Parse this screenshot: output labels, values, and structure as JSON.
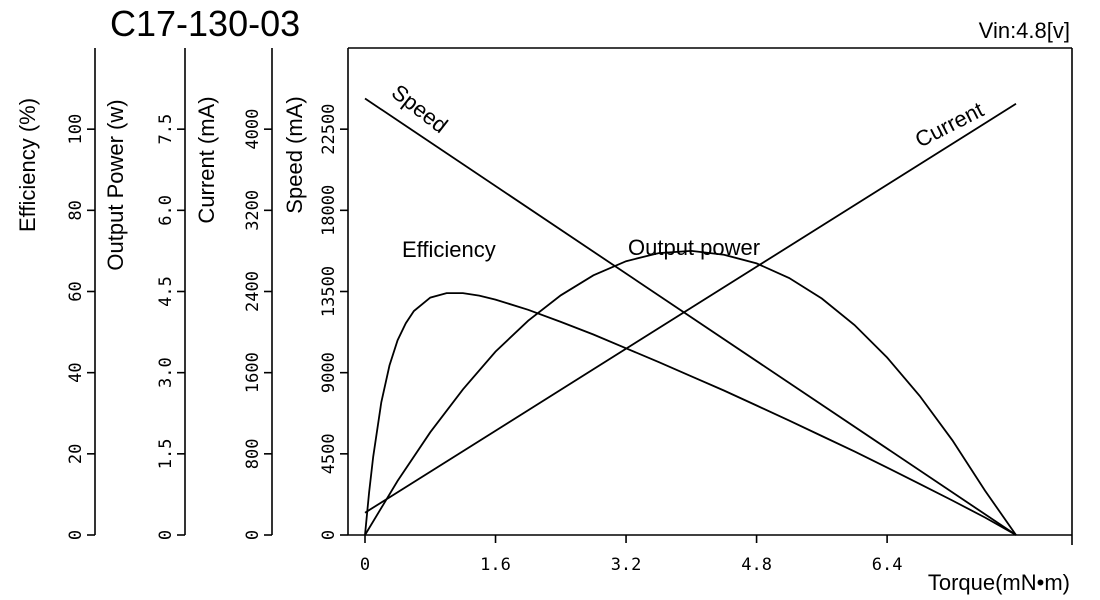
{
  "chart_data": {
    "type": "line",
    "title": "C17-130-03",
    "subtitle": "Vin:4.8[v]",
    "xlabel": "Torque(mN•m)",
    "xlim": [
      0,
      8.0
    ],
    "x_ticks": [
      "0",
      "1.6",
      "3.2",
      "4.8",
      "6.4"
    ],
    "x_tick_values": [
      0,
      1.6,
      3.2,
      4.8,
      6.4
    ],
    "grid": false,
    "y_axes": [
      {
        "id": "efficiency",
        "label": "Efficiency (%)",
        "range": [
          0,
          120
        ],
        "ticks": [
          "0",
          "20",
          "40",
          "60",
          "80",
          "100"
        ],
        "tick_values": [
          0,
          20,
          40,
          60,
          80,
          100
        ]
      },
      {
        "id": "power",
        "label": "Output Power (w)",
        "range": [
          0,
          9.0
        ],
        "ticks": [
          "0",
          "1.5",
          "3.0",
          "4.5",
          "6.0",
          "7.5"
        ],
        "tick_values": [
          0,
          1.5,
          3.0,
          4.5,
          6.0,
          7.5
        ]
      },
      {
        "id": "current",
        "label": "Current (mA)",
        "range": [
          0,
          4800
        ],
        "ticks": [
          "0",
          "800",
          "1600",
          "2400",
          "3200",
          "4000"
        ],
        "tick_values": [
          0,
          800,
          1600,
          2400,
          3200,
          4000
        ]
      },
      {
        "id": "speed",
        "label": "Speed (mA)",
        "range": [
          0,
          27000
        ],
        "ticks": [
          "0",
          "4500",
          "9000",
          "13500",
          "18000",
          "22500"
        ],
        "tick_values": [
          0,
          4500,
          9000,
          13500,
          18000,
          22500
        ]
      }
    ],
    "series": [
      {
        "name": "Speed",
        "axis": "speed",
        "x": [
          0,
          7.98
        ],
        "y": [
          24200,
          0
        ]
      },
      {
        "name": "Current",
        "axis": "current",
        "x": [
          0,
          7.98
        ],
        "y": [
          220,
          4250
        ]
      },
      {
        "name": "Efficiency",
        "axis": "efficiency",
        "x": [
          0,
          0.05,
          0.1,
          0.2,
          0.3,
          0.4,
          0.5,
          0.6,
          0.8,
          1.0,
          1.2,
          1.4,
          1.6,
          2.0,
          2.4,
          2.8,
          3.2,
          3.6,
          4.0,
          4.4,
          4.8,
          5.2,
          5.6,
          6.0,
          6.4,
          6.8,
          7.2,
          7.6,
          7.98
        ],
        "y": [
          0,
          10.5,
          19.3,
          32.7,
          41.8,
          48.0,
          52.2,
          55.2,
          58.5,
          59.6,
          59.6,
          59.0,
          58.0,
          55.5,
          52.5,
          49.4,
          46.0,
          42.6,
          39.1,
          35.6,
          31.9,
          28.2,
          24.4,
          20.6,
          16.6,
          12.6,
          8.5,
          4.3,
          0
        ]
      },
      {
        "name": "Output power",
        "axis": "power",
        "x": [
          0,
          0.4,
          0.8,
          1.2,
          1.6,
          2.0,
          2.4,
          2.8,
          3.2,
          3.6,
          4.0,
          4.4,
          4.8,
          5.2,
          5.6,
          6.0,
          6.4,
          6.8,
          7.2,
          7.6,
          7.98
        ],
        "y": [
          0,
          1.0,
          1.9,
          2.69,
          3.39,
          3.96,
          4.43,
          4.8,
          5.06,
          5.21,
          5.25,
          5.18,
          5.02,
          4.75,
          4.37,
          3.88,
          3.28,
          2.57,
          1.75,
          0.82,
          0
        ]
      }
    ],
    "curve_labels": [
      {
        "series": "Speed",
        "text": "Speed"
      },
      {
        "series": "Current",
        "text": "Current"
      },
      {
        "series": "Efficiency",
        "text": "Efficiency"
      },
      {
        "series": "Output power",
        "text": "Output power"
      }
    ]
  }
}
